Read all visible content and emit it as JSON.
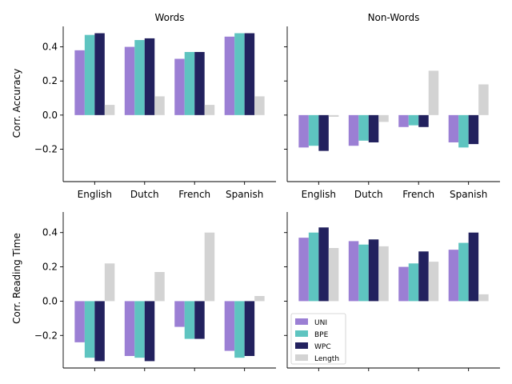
{
  "figure": {
    "col_titles": [
      "Words",
      "Non-Words"
    ],
    "row_ylabels": [
      "Corr. Accuracy",
      "Corr. Reading Time"
    ]
  },
  "legend": {
    "position": "lower-left of bottom-right panel",
    "entries": [
      {
        "name": "UNI",
        "color": "#9b7fd4"
      },
      {
        "name": "BPE",
        "color": "#5ec4c0"
      },
      {
        "name": "WPC",
        "color": "#22215e"
      },
      {
        "name": "Length",
        "color": "#d3d3d3"
      }
    ]
  },
  "chart_data": [
    {
      "type": "bar",
      "title": "Words",
      "xlabel": "",
      "ylabel": "Corr. Accuracy",
      "categories": [
        "English",
        "Dutch",
        "French",
        "Spanish"
      ],
      "ylim": [
        -0.39,
        0.52
      ],
      "yticks": [
        -0.2,
        0.0,
        0.2,
        0.4
      ],
      "show_xticklabels": true,
      "show_yticklabels": true,
      "series": [
        {
          "name": "UNI",
          "values": [
            0.38,
            0.4,
            0.33,
            0.46
          ]
        },
        {
          "name": "BPE",
          "values": [
            0.47,
            0.44,
            0.37,
            0.48
          ]
        },
        {
          "name": "WPC",
          "values": [
            0.48,
            0.45,
            0.37,
            0.48
          ]
        },
        {
          "name": "Length",
          "values": [
            0.06,
            0.11,
            0.06,
            0.11
          ]
        }
      ]
    },
    {
      "type": "bar",
      "title": "Non-Words",
      "xlabel": "",
      "ylabel": "",
      "categories": [
        "English",
        "Dutch",
        "French",
        "Spanish"
      ],
      "ylim": [
        -0.39,
        0.52
      ],
      "yticks": [
        -0.2,
        0.0,
        0.2,
        0.4
      ],
      "show_xticklabels": true,
      "show_yticklabels": false,
      "series": [
        {
          "name": "UNI",
          "values": [
            -0.19,
            -0.18,
            -0.07,
            -0.16
          ]
        },
        {
          "name": "BPE",
          "values": [
            -0.18,
            -0.15,
            -0.06,
            -0.19
          ]
        },
        {
          "name": "WPC",
          "values": [
            -0.21,
            -0.16,
            -0.07,
            -0.17
          ]
        },
        {
          "name": "Length",
          "values": [
            -0.01,
            -0.04,
            0.26,
            0.18
          ]
        }
      ]
    },
    {
      "type": "bar",
      "title": "",
      "xlabel": "",
      "ylabel": "Corr. Reading Time",
      "categories": [
        "English",
        "Dutch",
        "French",
        "Spanish"
      ],
      "ylim": [
        -0.39,
        0.52
      ],
      "yticks": [
        -0.2,
        0.0,
        0.2,
        0.4
      ],
      "show_xticklabels": false,
      "show_yticklabels": true,
      "series": [
        {
          "name": "UNI",
          "values": [
            -0.24,
            -0.32,
            -0.15,
            -0.29
          ]
        },
        {
          "name": "BPE",
          "values": [
            -0.33,
            -0.33,
            -0.22,
            -0.33
          ]
        },
        {
          "name": "WPC",
          "values": [
            -0.35,
            -0.35,
            -0.22,
            -0.32
          ]
        },
        {
          "name": "Length",
          "values": [
            0.22,
            0.17,
            0.4,
            0.03
          ]
        }
      ]
    },
    {
      "type": "bar",
      "title": "",
      "xlabel": "",
      "ylabel": "",
      "categories": [
        "English",
        "Dutch",
        "French",
        "Spanish"
      ],
      "ylim": [
        -0.39,
        0.52
      ],
      "yticks": [
        -0.2,
        0.0,
        0.2,
        0.4
      ],
      "show_xticklabels": false,
      "show_yticklabels": false,
      "show_legend": true,
      "series": [
        {
          "name": "UNI",
          "values": [
            0.37,
            0.35,
            0.2,
            0.3
          ]
        },
        {
          "name": "BPE",
          "values": [
            0.4,
            0.33,
            0.22,
            0.34
          ]
        },
        {
          "name": "WPC",
          "values": [
            0.43,
            0.36,
            0.29,
            0.4
          ]
        },
        {
          "name": "Length",
          "values": [
            0.31,
            0.32,
            0.23,
            0.04
          ]
        }
      ]
    }
  ]
}
